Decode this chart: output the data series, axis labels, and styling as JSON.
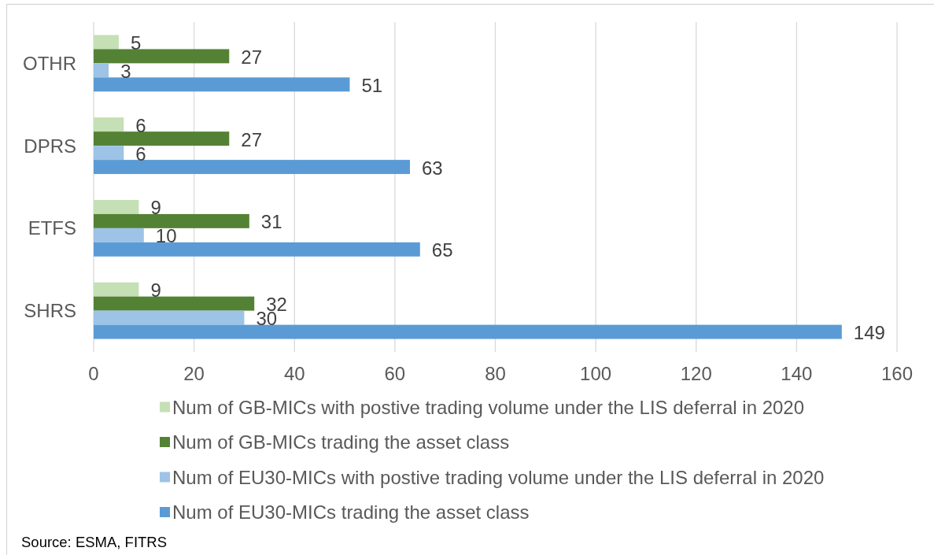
{
  "chart_data": {
    "type": "bar",
    "orientation": "horizontal",
    "categories": [
      "OTHR",
      "DPRS",
      "ETFS",
      "SHRS"
    ],
    "series": [
      {
        "name": "Num of GB-MICs with postive trading volume under the LIS deferral in 2020",
        "color": "#c5e0b4",
        "values": [
          5,
          6,
          9,
          9
        ]
      },
      {
        "name": "Num of GB-MICs trading the asset class",
        "color": "#548235",
        "values": [
          27,
          27,
          31,
          32
        ]
      },
      {
        "name": "Num of EU30-MICs with postive trading volume under the LIS deferral in 2020",
        "color": "#9dc3e6",
        "values": [
          3,
          6,
          10,
          30
        ]
      },
      {
        "name": "Num of EU30-MICs trading the asset class",
        "color": "#5b9bd5",
        "values": [
          51,
          63,
          65,
          149
        ]
      }
    ],
    "xlim": [
      0,
      160
    ],
    "xticks": [
      0,
      20,
      40,
      60,
      80,
      100,
      120,
      140,
      160
    ],
    "grid": "x",
    "legend": "bottom",
    "data_labels": true,
    "annotations": [
      "Source: ESMA, FITRS"
    ]
  }
}
